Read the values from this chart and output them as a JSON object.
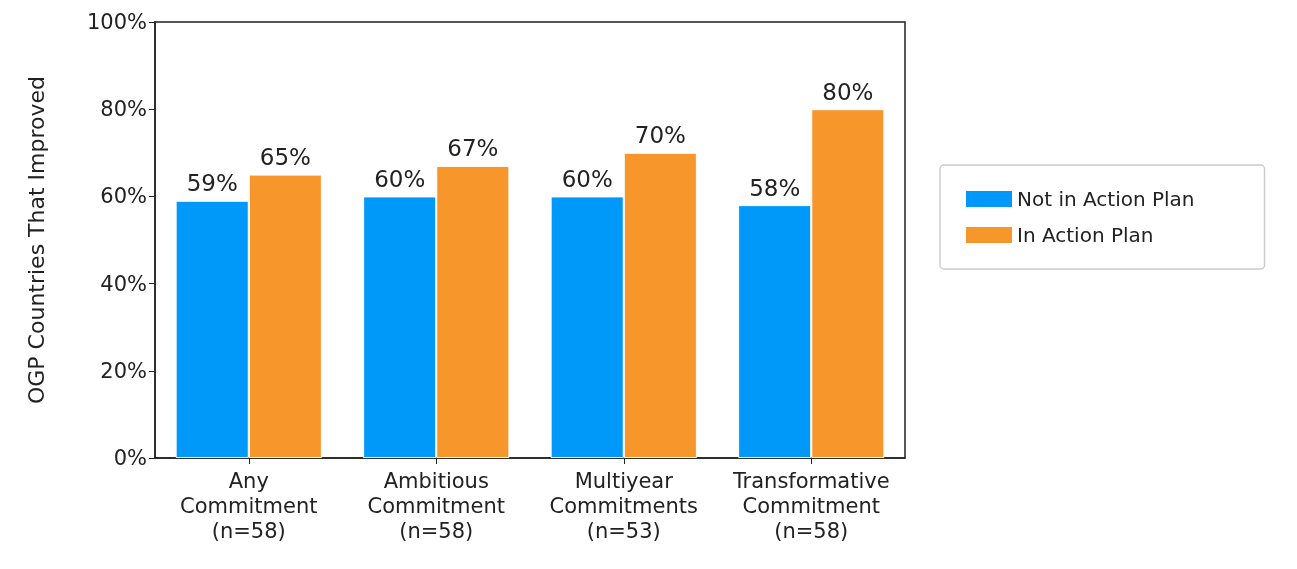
{
  "chart_data": {
    "type": "bar",
    "ylabel": "OGP Countries That Improved",
    "categories": [
      "Any\nCommitment\n(n=58)",
      "Ambitious\nCommitment\n(n=58)",
      "Multiyear\nCommitments\n(n=53)",
      "Transformative\nCommitment\n(n=58)"
    ],
    "series": [
      {
        "name": "Not in Action Plan",
        "color": "#0099fa",
        "values": [
          59,
          60,
          60,
          58
        ],
        "value_labels": [
          "59%",
          "60%",
          "60%",
          "58%"
        ]
      },
      {
        "name": "In Action Plan",
        "color": "#f7962a",
        "values": [
          65,
          67,
          70,
          80
        ],
        "value_labels": [
          "65%",
          "67%",
          "70%",
          "80%"
        ]
      }
    ],
    "ylim": [
      0,
      100
    ],
    "yticks": [
      {
        "value": 0,
        "label": "0%"
      },
      {
        "value": 20,
        "label": "20%"
      },
      {
        "value": 40,
        "label": "40%"
      },
      {
        "value": 60,
        "label": "60%"
      },
      {
        "value": 80,
        "label": "80%"
      },
      {
        "value": 100,
        "label": "100%"
      }
    ],
    "grid": false,
    "legend": "right"
  }
}
